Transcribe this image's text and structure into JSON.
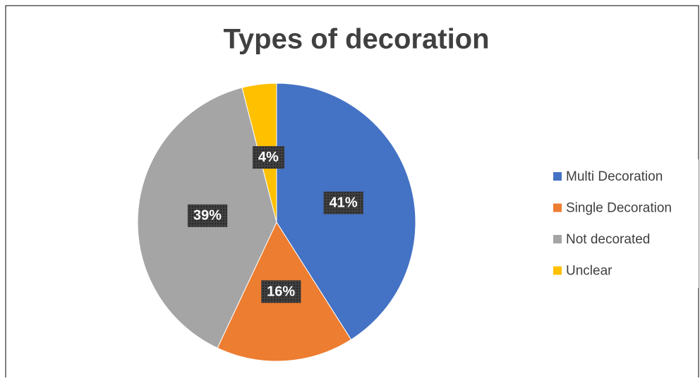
{
  "chart_data": {
    "type": "pie",
    "title": "Types of decoration",
    "categories": [
      "Multi Decoration",
      "Single Decoration",
      "Not decorated",
      "Unclear"
    ],
    "values": [
      41,
      16,
      39,
      4
    ],
    "colors": [
      "#4472c4",
      "#ed7d31",
      "#a5a5a5",
      "#ffc000"
    ],
    "legend": "right"
  }
}
